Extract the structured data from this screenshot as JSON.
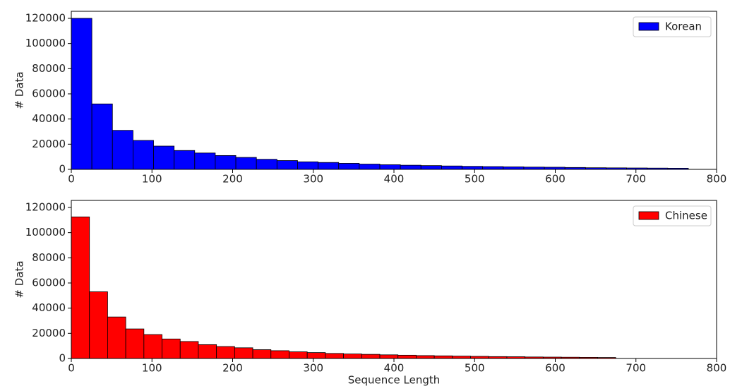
{
  "chart_data": [
    {
      "type": "histogram",
      "ylabel": "# Data",
      "legend": "upper right",
      "bins": [
        0,
        25.5,
        51,
        76.5,
        102,
        127.5,
        153,
        178.5,
        204,
        229.5,
        255,
        280.5,
        306,
        331.5,
        357,
        382.5,
        408,
        433.5,
        459,
        484.5,
        510,
        535.5,
        561,
        586.5,
        612,
        637.5,
        663,
        688.5,
        714,
        739.5,
        765
      ],
      "series": [
        {
          "name": "Korean",
          "color": "#0000ff",
          "values": [
            120000,
            52000,
            31000,
            23000,
            18500,
            15000,
            13000,
            11000,
            9500,
            8000,
            7000,
            6000,
            5500,
            4800,
            4200,
            3700,
            3300,
            3000,
            2700,
            2400,
            2200,
            2000,
            1800,
            1700,
            1500,
            1300,
            1200,
            1100,
            1000,
            900
          ]
        }
      ],
      "xlim": [
        0,
        800
      ],
      "xticks": [
        0,
        100,
        200,
        300,
        400,
        500,
        600,
        700,
        800
      ],
      "ylim": [
        0,
        125600
      ],
      "yticks": [
        0,
        20000,
        40000,
        60000,
        80000,
        100000,
        120000
      ]
    },
    {
      "type": "histogram",
      "xlabel": "Sequence Length",
      "ylabel": "# Data",
      "legend": "upper right",
      "bins": [
        0,
        22.5,
        45,
        67.5,
        90,
        112.5,
        135,
        157.5,
        180,
        202.5,
        225,
        247.5,
        270,
        292.5,
        315,
        337.5,
        360,
        382.5,
        405,
        427.5,
        450,
        472.5,
        495,
        517.5,
        540,
        562.5,
        585,
        607.5,
        630,
        652.5,
        675
      ],
      "series": [
        {
          "name": "Chinese",
          "color": "#ff0000",
          "values": [
            112500,
            53000,
            33000,
            23500,
            19000,
            15500,
            13500,
            11000,
            9500,
            8500,
            7000,
            6200,
            5300,
            4700,
            4000,
            3600,
            3300,
            2900,
            2600,
            2300,
            2100,
            1900,
            1700,
            1500,
            1400,
            1200,
            1100,
            1000,
            900,
            800
          ]
        }
      ],
      "xlim": [
        0,
        800
      ],
      "xticks": [
        0,
        100,
        200,
        300,
        400,
        500,
        600,
        700,
        800
      ],
      "ylim": [
        0,
        125600
      ],
      "yticks": [
        0,
        20000,
        40000,
        60000,
        80000,
        100000,
        120000
      ]
    }
  ]
}
